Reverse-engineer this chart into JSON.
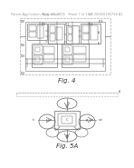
{
  "background_color": "#f5f5f0",
  "page_bg": "#ffffff",
  "header_color": "#888888",
  "header_fontsize": 2.8,
  "header_text_left": "Patent Application Publication",
  "header_text_mid": "Aug. 30, 2005   Sheet 7 of 154",
  "header_text_right": "US 2005/0185794 A1",
  "fig4_label": "Fig. 4",
  "fig5a_label": "Fig. 5A",
  "line_color": "#555555",
  "box_color": "#444444",
  "dash_color": "#999999",
  "lw": 0.35
}
